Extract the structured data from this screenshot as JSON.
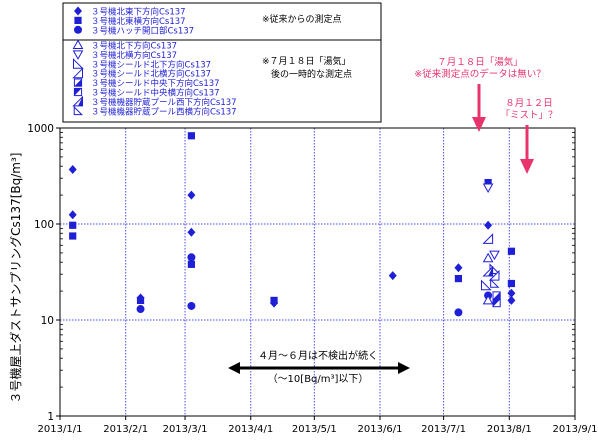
{
  "chart_data": {
    "type": "scatter",
    "title": "",
    "ylabel": "３号機屋上ダストサンプリングCs137[Bq/m³]",
    "xlabel": "",
    "y_scale": "log",
    "ylim": [
      1,
      1000
    ],
    "y_ticks": [
      "1",
      "10",
      "100",
      "1000"
    ],
    "x_range": [
      "2013-01-01",
      "2013-09-01"
    ],
    "x_ticks": [
      "2013/1/1",
      "2013/2/1",
      "2013/3/1",
      "2013/4/1",
      "2013/5/1",
      "2013/6/1",
      "2013/7/1",
      "2013/8/1",
      "2013/9/1"
    ],
    "grid": true,
    "legend_position": "top-left",
    "legend_group_notes": [
      "※従来からの測定点",
      "※７月１８日「湯気」\n　後の一時的な測定点"
    ],
    "series": [
      {
        "name": "３号機北東下方向Cs137",
        "marker": "diamond-filled",
        "group": 0,
        "points": [
          [
            "2013-01-07",
            370
          ],
          [
            "2013-01-07",
            125
          ],
          [
            "2013-02-08",
            17
          ],
          [
            "2013-03-04",
            200
          ],
          [
            "2013-03-04",
            82
          ],
          [
            "2013-04-12",
            15
          ],
          [
            "2013-06-07",
            29
          ],
          [
            "2013-07-08",
            35
          ],
          [
            "2013-07-22",
            97
          ],
          [
            "2013-08-02",
            19
          ],
          [
            "2013-08-02",
            16
          ]
        ]
      },
      {
        "name": "３号機北東横方向Cs137",
        "marker": "square-filled",
        "group": 0,
        "points": [
          [
            "2013-01-07",
            97
          ],
          [
            "2013-01-07",
            75
          ],
          [
            "2013-02-08",
            16
          ],
          [
            "2013-03-04",
            830
          ],
          [
            "2013-03-04",
            38
          ],
          [
            "2013-04-12",
            16
          ],
          [
            "2013-07-08",
            27
          ],
          [
            "2013-07-22",
            270
          ],
          [
            "2013-07-26",
            16
          ],
          [
            "2013-08-02",
            52
          ],
          [
            "2013-08-02",
            24
          ]
        ]
      },
      {
        "name": "３号機ハッチ開口部Cs137",
        "marker": "circle-filled",
        "group": 0,
        "points": [
          [
            "2013-02-08",
            13
          ],
          [
            "2013-03-04",
            45
          ],
          [
            "2013-03-04",
            14
          ],
          [
            "2013-07-08",
            12
          ],
          [
            "2013-07-22",
            18
          ]
        ]
      },
      {
        "name": "３号機北下方向Cs137",
        "marker": "triangle-up-open",
        "group": 1,
        "points": [
          [
            "2013-07-22",
            44
          ],
          [
            "2013-07-22",
            16
          ]
        ]
      },
      {
        "name": "３号機北横方向Cs137",
        "marker": "triangle-down-open",
        "group": 1,
        "points": [
          [
            "2013-07-22",
            240
          ],
          [
            "2013-07-25",
            48
          ]
        ]
      },
      {
        "name": "３号機シールド北下方向Cs137",
        "marker": "triangle-right-open",
        "group": 1,
        "points": [
          [
            "2013-07-25",
            34
          ],
          [
            "2013-07-21",
            23
          ]
        ]
      },
      {
        "name": "３号機シールド北横方向Cs137",
        "marker": "triangle-left-open",
        "group": 1,
        "points": [
          [
            "2013-07-22",
            70
          ],
          [
            "2013-07-25",
            29
          ]
        ]
      },
      {
        "name": "３号機シールド中央下方向Cs137",
        "marker": "square-lower-filled",
        "group": 1,
        "points": [
          [
            "2013-07-26",
            18
          ]
        ]
      },
      {
        "name": "３号機シールド中央横方向Cs137",
        "marker": "square-upper-filled",
        "group": 1,
        "points": [
          [
            "2013-07-26",
            15
          ]
        ]
      },
      {
        "name": "３号機機器貯蔵プール西下方向Cs137",
        "marker": "triangle-left-half",
        "group": 1,
        "points": [
          [
            "2013-07-22",
            32
          ]
        ]
      },
      {
        "name": "３号機機器貯蔵プール西横方向Cs137",
        "marker": "triangle-right-open-small",
        "group": 1,
        "points": [
          [
            "2013-07-25",
            24
          ]
        ]
      }
    ],
    "annotations": {
      "undetected_line1": "４月～６月は不検出が続く",
      "undetected_line2": "（～10[Bq/m³]以下）",
      "steam_line1": "７月１８日「湯気」",
      "steam_line2": "※従来測定点のデータは無い？",
      "mist_line1": "８月１２日",
      "mist_line2": "「ミスト」？"
    },
    "colors": {
      "marker": "#1f1fd6",
      "grid": "#4b4bff",
      "annotation": "#e8336d",
      "axis": "#000000"
    }
  }
}
